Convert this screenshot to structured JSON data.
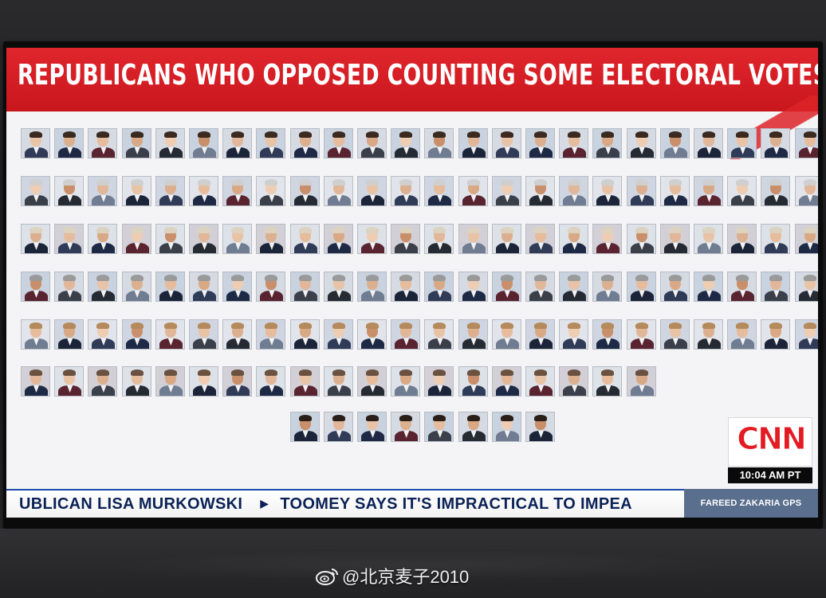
{
  "headline": "REPUBLICANS WHO OPPOSED COUNTING SOME ELECTORAL VOTES",
  "network": {
    "logo": "CNN",
    "logo_color": "#e31b23",
    "time": "10:04 AM PT"
  },
  "ticker": {
    "segment_1": "UBLICAN LISA MURKOWSKI",
    "segment_2": "TOOMEY SAYS IT'S IMPRACTICAL TO IMPEA",
    "show": "FAREED ZAKARIA GPS"
  },
  "watermark": {
    "text": "@北京麦子2010",
    "icon": "weibo-icon"
  },
  "grid": {
    "row_counts": [
      24,
      24,
      24,
      24,
      24,
      19,
      8
    ],
    "row_7_offset_columns": 8
  }
}
